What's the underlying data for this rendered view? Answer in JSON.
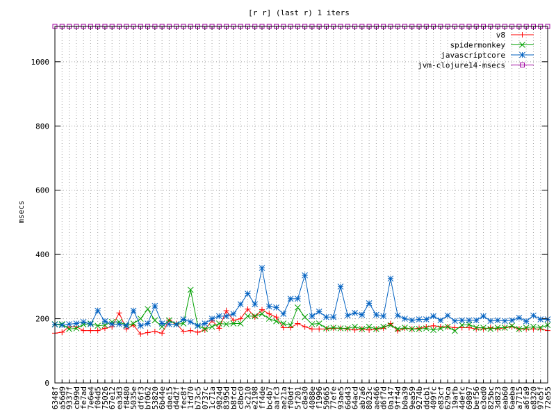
{
  "chart_data": {
    "type": "line",
    "title": "[r r] (last r) 1 iters",
    "xlabel": "",
    "ylabel": "msecs",
    "ylim": [
      0,
      1110
    ],
    "yticks": [
      0,
      200,
      400,
      600,
      800,
      1000
    ],
    "grid": true,
    "legend_position": "top-right",
    "categories": [
      "6348f",
      "a56d9",
      "9337f",
      "cb99d",
      "fe7ad",
      "7e6e4",
      "f04d5",
      "75026",
      "67e12",
      "ea3d3",
      "f8480",
      "5035e",
      "df6f3",
      "bf062",
      "53820",
      "6b44e",
      "dae15",
      "d4d2f",
      "fec8f",
      "1fd70",
      "b73c5",
      "0737c",
      "1c71a",
      "9824d",
      "8395d",
      "b8fcd",
      "c8bc0",
      "3c210",
      "e2198",
      "ff4de",
      "bc4b7",
      "aafc3",
      "ae21a",
      "f00df",
      "5f201",
      "c8e30",
      "4088e",
      "f1996",
      "59665",
      "77efe",
      "93ae5",
      "66d43",
      "64acd",
      "ab7a6",
      "8023c",
      "ae466",
      "d6f7d",
      "0a147",
      "9ff4d",
      "b0a39",
      "9ea59",
      "9274b",
      "ddcb1",
      "409fc",
      "e83cf",
      "629ca",
      "19afb",
      "4defc",
      "69897",
      "bef56",
      "e3ed0",
      "825bc",
      "3d823",
      "eab60",
      "6aeba",
      "a7715",
      "a6fa9",
      "e8320",
      "97e5f",
      "72e55"
    ],
    "series": [
      {
        "name": "v8",
        "color": "#ff0000",
        "marker": "plus",
        "values": [
          155,
          158,
          175,
          175,
          163,
          163,
          163,
          170,
          175,
          218,
          168,
          180,
          152,
          157,
          160,
          155,
          195,
          185,
          160,
          163,
          158,
          165,
          195,
          170,
          225,
          195,
          200,
          230,
          205,
          228,
          215,
          205,
          172,
          172,
          185,
          175,
          168,
          168,
          168,
          170,
          170,
          168,
          165,
          168,
          165,
          168,
          170,
          185,
          162,
          170,
          168,
          170,
          175,
          178,
          175,
          175,
          172,
          172,
          172,
          168,
          168,
          172,
          168,
          172,
          175,
          168,
          168,
          168,
          168,
          163
        ]
      },
      {
        "name": "spidermonkey",
        "color": "#00a000",
        "marker": "cross",
        "values": [
          183,
          183,
          168,
          170,
          182,
          185,
          178,
          180,
          190,
          190,
          180,
          185,
          200,
          230,
          195,
          175,
          195,
          183,
          185,
          290,
          178,
          168,
          175,
          185,
          183,
          185,
          185,
          208,
          208,
          215,
          200,
          192,
          185,
          180,
          235,
          205,
          183,
          185,
          170,
          172,
          170,
          170,
          175,
          168,
          175,
          168,
          175,
          180,
          168,
          172,
          168,
          168,
          170,
          165,
          170,
          175,
          162,
          180,
          182,
          172,
          172,
          168,
          172,
          172,
          178,
          168,
          172,
          175,
          172,
          180
        ]
      },
      {
        "name": "javascriptcore",
        "color": "#0060c0",
        "marker": "star",
        "values": [
          182,
          180,
          183,
          185,
          190,
          183,
          225,
          192,
          183,
          183,
          178,
          225,
          178,
          185,
          240,
          185,
          183,
          182,
          198,
          190,
          178,
          185,
          200,
          208,
          208,
          215,
          245,
          278,
          245,
          358,
          238,
          235,
          215,
          262,
          262,
          335,
          208,
          222,
          205,
          205,
          300,
          210,
          218,
          212,
          248,
          212,
          208,
          325,
          210,
          200,
          195,
          198,
          198,
          208,
          195,
          210,
          193,
          195,
          195,
          195,
          208,
          193,
          195,
          193,
          195,
          203,
          192,
          210,
          198,
          198
        ]
      },
      {
        "name": "jvm-clojure14-msecs",
        "color": "#a000a0",
        "marker": "square",
        "values": [
          1110,
          1110,
          1110,
          1110,
          1110,
          1110,
          1110,
          1110,
          1110,
          1110,
          1110,
          1110,
          1110,
          1110,
          1110,
          1110,
          1110,
          1110,
          1110,
          1110,
          1110,
          1110,
          1110,
          1110,
          1110,
          1110,
          1110,
          1110,
          1110,
          1110,
          1110,
          1110,
          1110,
          1110,
          1110,
          1110,
          1110,
          1110,
          1110,
          1110,
          1110,
          1110,
          1110,
          1110,
          1110,
          1110,
          1110,
          1110,
          1110,
          1110,
          1110,
          1110,
          1110,
          1110,
          1110,
          1110,
          1110,
          1110,
          1110,
          1110,
          1110,
          1110,
          1110,
          1110,
          1110,
          1110,
          1110,
          1110,
          1110,
          1110
        ]
      }
    ]
  }
}
